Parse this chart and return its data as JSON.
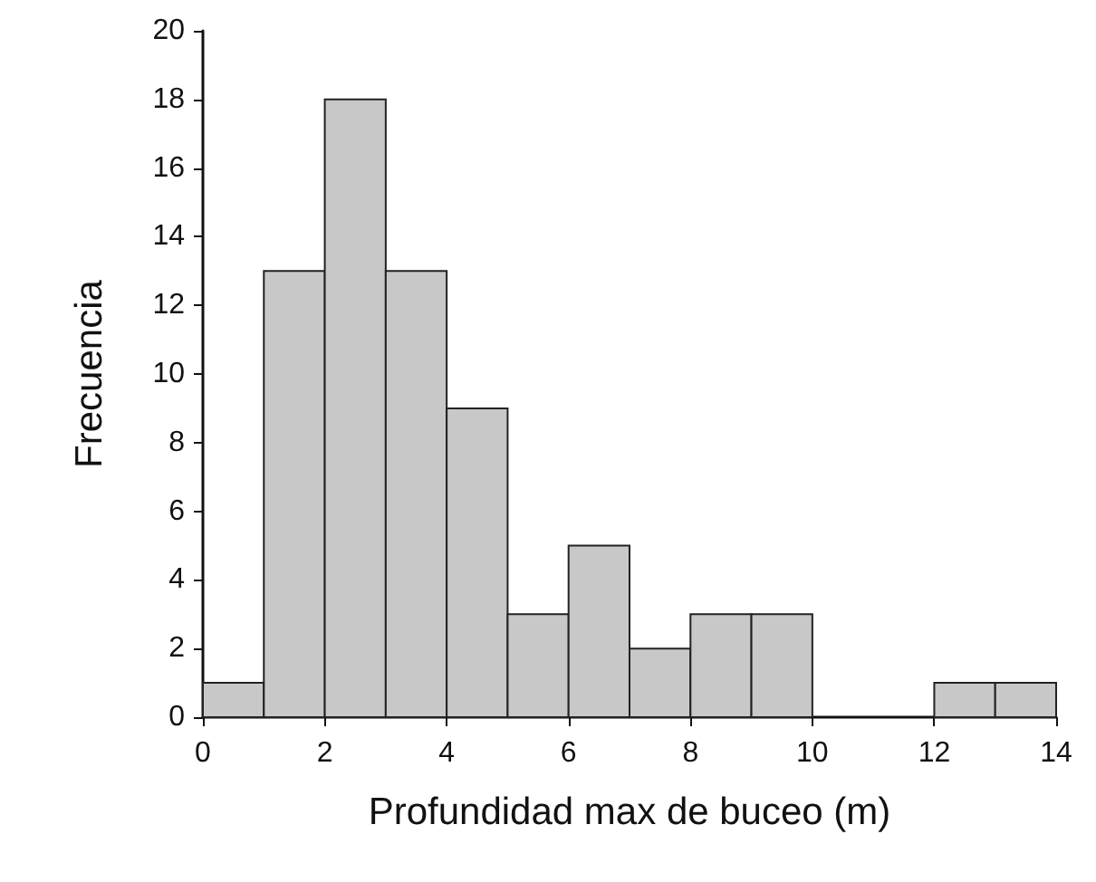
{
  "chart_data": {
    "type": "histogram",
    "xlabel": "Profundidad max de buceo (m)",
    "ylabel": "Frecuencia",
    "bins": [
      0,
      1,
      2,
      3,
      4,
      5,
      6,
      7,
      8,
      9,
      10,
      11,
      12,
      13,
      14
    ],
    "values": [
      1,
      13,
      18,
      13,
      9,
      3,
      5,
      2,
      3,
      3,
      0,
      0,
      1,
      1
    ],
    "color": "#c8c8c8",
    "xlim": [
      0,
      14
    ],
    "xticks": [
      0,
      2,
      4,
      6,
      8,
      10,
      12,
      14
    ],
    "ylim": [
      0,
      20
    ],
    "yticks": [
      0,
      2,
      4,
      6,
      8,
      10,
      12,
      14,
      16,
      18,
      20
    ],
    "grid": false
  }
}
